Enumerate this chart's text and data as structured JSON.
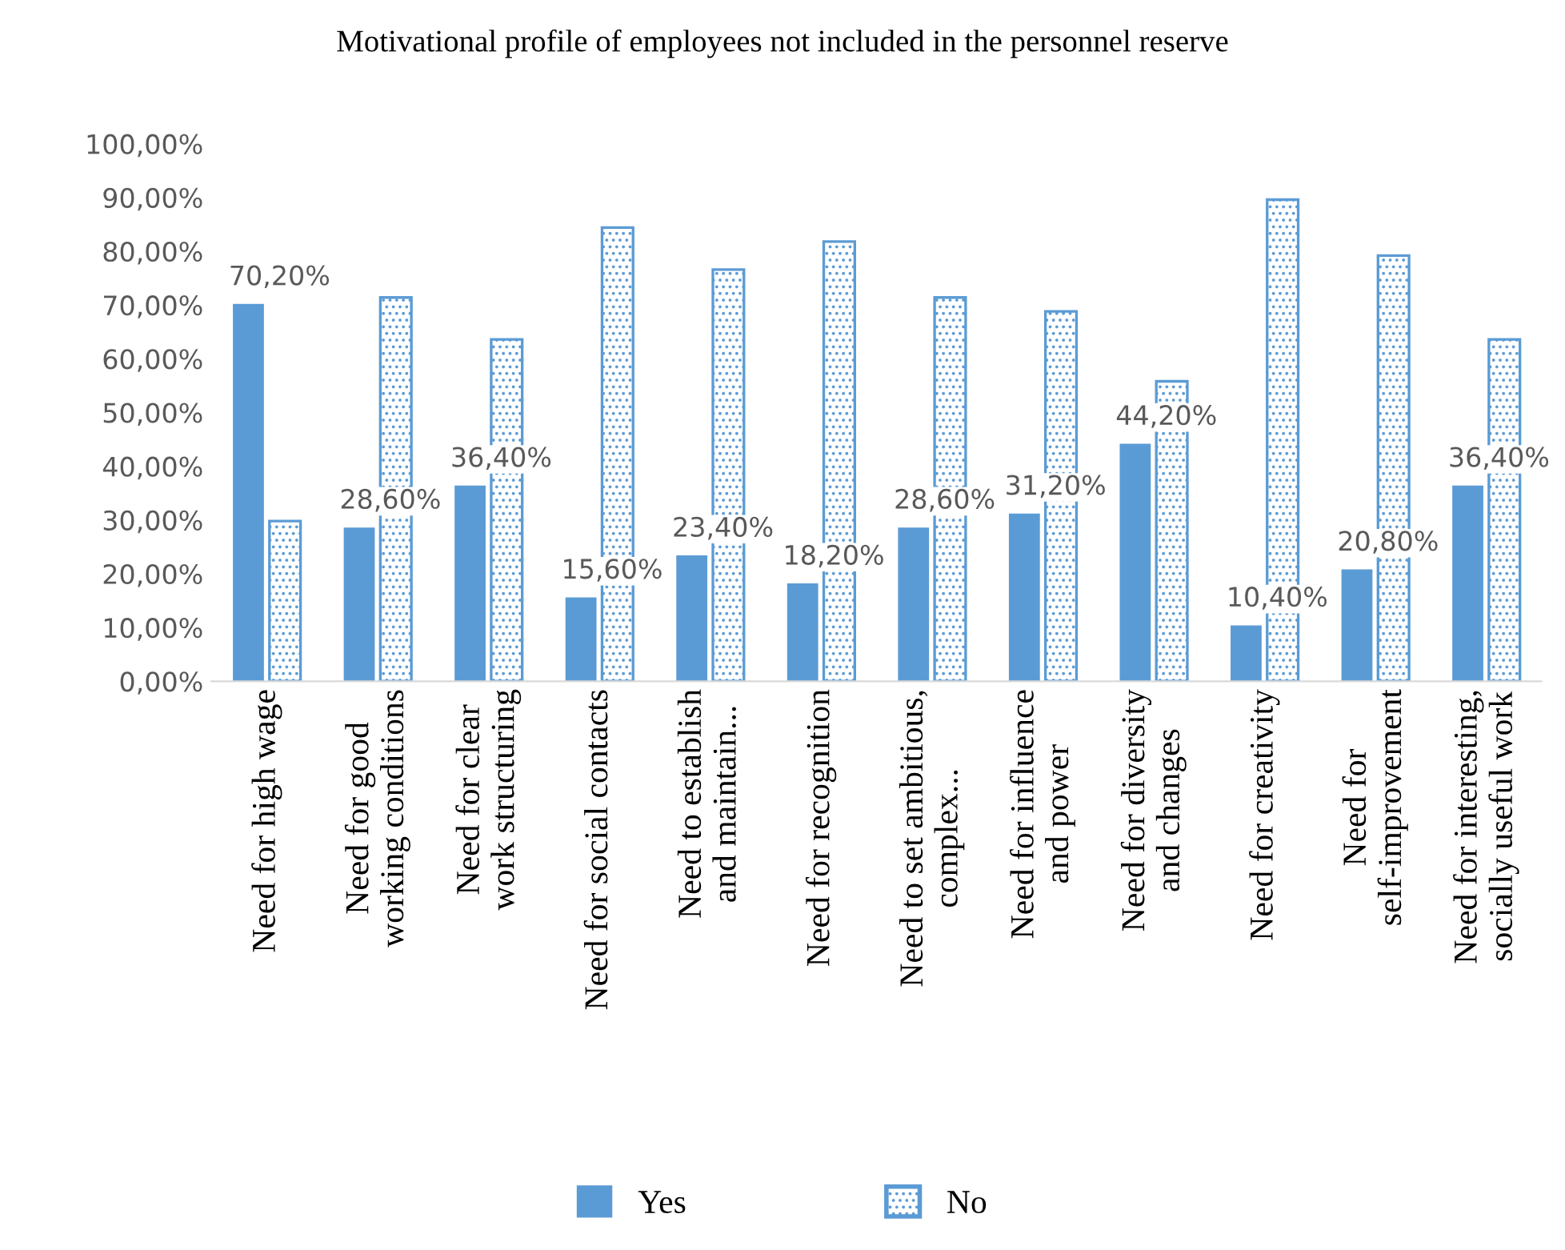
{
  "chart_data": {
    "type": "bar",
    "title": "Motivational profile of employees not included in the personnel reserve",
    "categories": [
      "Need for high wage",
      "Need for good\nworking conditions",
      "Need for clear\nwork structuring",
      "Need for social contacts",
      "Need to establish\nand maintain...",
      "Need for recognition",
      "Need to set ambitious,\ncomplex...",
      "Need for influence\nand power",
      "Need for diversity\nand changes",
      "Need for creativity",
      "Need for\nself-improvement",
      "Need for interesting,\nsocially useful work"
    ],
    "series": [
      {
        "name": "Yes",
        "color": "#5b9bd5",
        "values": [
          70.2,
          28.6,
          36.4,
          15.6,
          23.4,
          18.2,
          28.6,
          31.2,
          44.2,
          10.4,
          20.8,
          36.4
        ],
        "value_labels": [
          "70,20%",
          "28,60%",
          "36,40%",
          "15,60%",
          "23,40%",
          "18,20%",
          "28,60%",
          "31,20%",
          "44,20%",
          "10,40%",
          "20,80%",
          "36,40%"
        ]
      },
      {
        "name": "No",
        "color": "#5b9bd5",
        "values": [
          29.8,
          71.4,
          63.6,
          84.4,
          76.6,
          81.8,
          71.4,
          68.8,
          55.8,
          89.6,
          79.2,
          63.6
        ]
      }
    ],
    "ylim": [
      0,
      100
    ],
    "yticks": [
      {
        "value": 0,
        "label": "0,00%"
      },
      {
        "value": 10,
        "label": "10,00%"
      },
      {
        "value": 20,
        "label": "20,00%"
      },
      {
        "value": 30,
        "label": "30,00%"
      },
      {
        "value": 40,
        "label": "40,00%"
      },
      {
        "value": 50,
        "label": "50,00%"
      },
      {
        "value": 60,
        "label": "60,00%"
      },
      {
        "value": 70,
        "label": "70,00%"
      },
      {
        "value": 80,
        "label": "80,00%"
      },
      {
        "value": 90,
        "label": "90,00%"
      },
      {
        "value": 100,
        "label": "100,00%"
      }
    ],
    "grid": false,
    "legend": "bottom"
  }
}
